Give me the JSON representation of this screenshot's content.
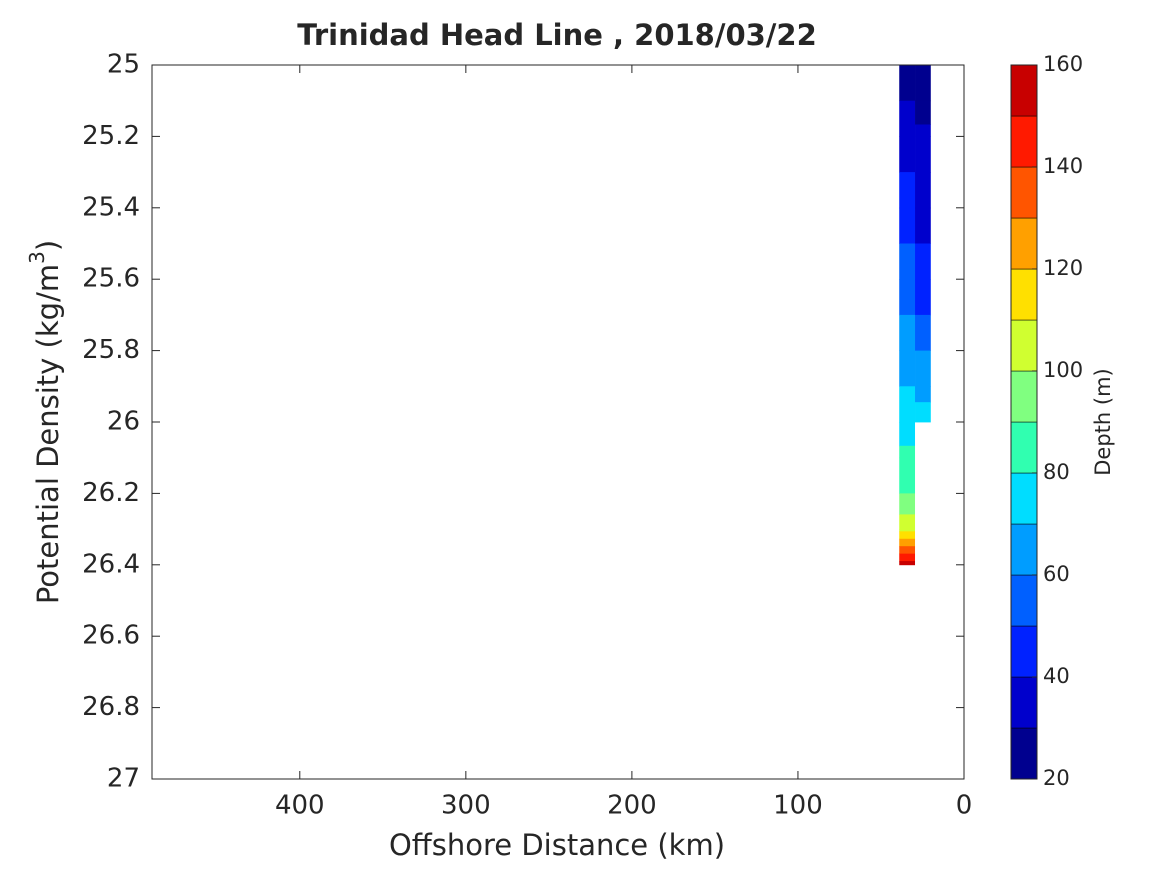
{
  "chart_data": {
    "type": "contour",
    "title": "Trinidad Head Line , 2018/03/22",
    "xlabel": "Offshore Distance (km)",
    "ylabel": [
      "Potential Density (kg/m",
      "3",
      ")"
    ],
    "xlim": [
      489,
      0
    ],
    "xticks": [
      400,
      300,
      200,
      100,
      0
    ],
    "ylim": [
      25,
      27
    ],
    "yticks": [
      25,
      25.2,
      25.4,
      25.6,
      25.8,
      26,
      26.2,
      26.4,
      26.6,
      26.8,
      27
    ],
    "x": [
      39,
      20
    ],
    "y": [
      25.0,
      25.1,
      25.2,
      25.3,
      25.4,
      25.5,
      25.6,
      25.7,
      25.8,
      25.9,
      26.0,
      26.1,
      26.2,
      26.3,
      26.4
    ],
    "z": [
      [
        25,
        30,
        35,
        40,
        45,
        50,
        55,
        60,
        65,
        70,
        76,
        82,
        90,
        107,
        155
      ],
      [
        26,
        28,
        31,
        34,
        37,
        40,
        45,
        50,
        60,
        66,
        75,
        null,
        null,
        null,
        null
      ]
    ],
    "colorbar": {
      "label": "Depth (m)",
      "levels": [
        20,
        30,
        40,
        50,
        60,
        70,
        80,
        90,
        100,
        110,
        120,
        130,
        140,
        150,
        160
      ],
      "colors": [
        "#00008f",
        "#0000cc",
        "#0022ff",
        "#0060ff",
        "#009dff",
        "#00ddff",
        "#30ffb0",
        "#80ff80",
        "#d0ff30",
        "#ffe000",
        "#ffa000",
        "#ff5500",
        "#ff1a00",
        "#c80000"
      ],
      "ticks": [
        20,
        40,
        60,
        80,
        100,
        120,
        140,
        160
      ]
    }
  }
}
